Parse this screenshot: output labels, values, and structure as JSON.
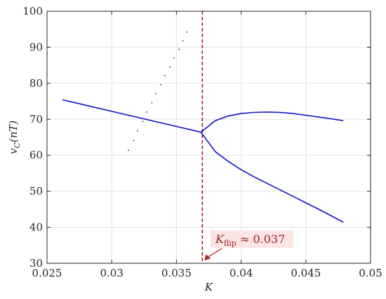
{
  "chart_data": {
    "type": "line",
    "xlabel": "K",
    "ylabel": "v_C(nT)",
    "ylabel_main": "v",
    "ylabel_sub": "C",
    "ylabel_rest": "(nT)",
    "xlim": [
      0.025,
      0.05
    ],
    "ylim": [
      30,
      100
    ],
    "grid": true,
    "x_ticks": [
      0.025,
      0.03,
      0.035,
      0.04,
      0.045,
      0.05
    ],
    "x_tick_labels": [
      "0.025",
      "0.03",
      "0.035",
      "0.04",
      "0.045",
      "0.05"
    ],
    "y_ticks": [
      30,
      40,
      50,
      60,
      70,
      80,
      90,
      100
    ],
    "y_tick_labels": [
      "30",
      "40",
      "50",
      "60",
      "70",
      "80",
      "90",
      "100"
    ],
    "series": [
      {
        "style": "line",
        "color": "#1010c8",
        "x": [
          0.0262,
          0.0369
        ],
        "y": [
          75.4,
          66.4
        ]
      },
      {
        "style": "line",
        "color": "#1010c8",
        "x": [
          0.0369,
          0.038,
          0.039,
          0.04,
          0.041,
          0.042,
          0.043,
          0.044,
          0.045,
          0.046,
          0.047,
          0.0479
        ],
        "y": [
          66.4,
          69.6,
          70.9,
          71.6,
          71.9,
          72.0,
          71.9,
          71.6,
          71.1,
          70.6,
          70.1,
          69.6
        ]
      },
      {
        "style": "line",
        "color": "#1010c8",
        "x": [
          0.0369,
          0.038,
          0.039,
          0.04,
          0.041,
          0.042,
          0.043,
          0.044,
          0.045,
          0.046,
          0.047,
          0.0479
        ],
        "y": [
          66.4,
          61.0,
          58.3,
          56.0,
          54.0,
          52.2,
          50.4,
          48.6,
          46.8,
          45.0,
          43.1,
          41.4
        ]
      },
      {
        "style": "scatter",
        "color": "#6a6ae6",
        "x": [
          0.0313,
          0.0317,
          0.032,
          0.0324,
          0.0327,
          0.0331,
          0.0334,
          0.0338,
          0.0341,
          0.0345,
          0.0348,
          0.0352,
          0.0355,
          0.0358
        ],
        "y": [
          61.4,
          64.1,
          66.8,
          69.4,
          72.0,
          74.6,
          77.1,
          79.6,
          82.1,
          84.5,
          87.0,
          89.4,
          91.8,
          94.2
        ]
      }
    ],
    "reference_line": {
      "x": 0.037,
      "color": "#9b2323",
      "style": "dashed"
    },
    "annotation": {
      "label": "K",
      "label_sub": "flip",
      "label_rest": " ≈ 0.037",
      "x": 0.037,
      "y": 30,
      "color": "#9b2323"
    }
  }
}
